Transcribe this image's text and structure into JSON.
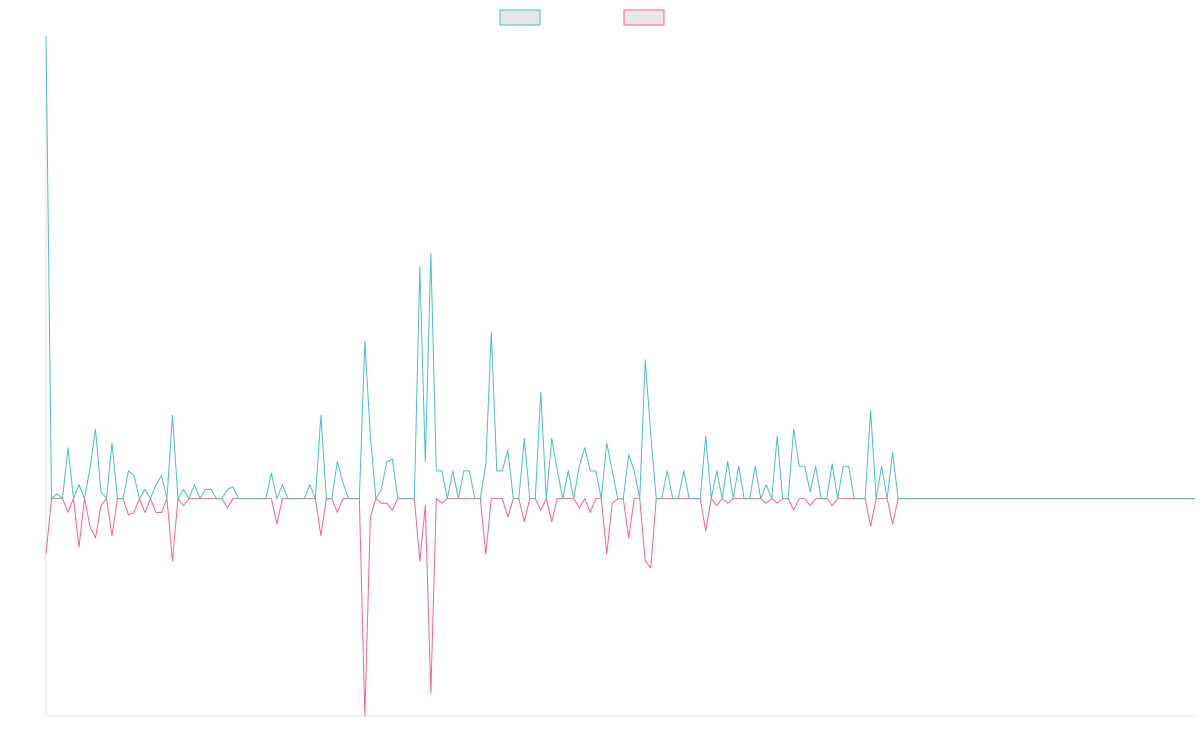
{
  "chart_data": {
    "type": "line",
    "ylim": [
      -47,
      100
    ],
    "series": [
      {
        "color": "#4bc0c0",
        "values": [
          100,
          0,
          1,
          0,
          11,
          0,
          3,
          0,
          6.5,
          15,
          1.5,
          0,
          12,
          0,
          0,
          6,
          5,
          0,
          2,
          0,
          3,
          5,
          0,
          18,
          0,
          2,
          0,
          3,
          0,
          2,
          2,
          0,
          0,
          2,
          2.5,
          0,
          0,
          0,
          0,
          0,
          0,
          5.5,
          0,
          3,
          0,
          0,
          0,
          0,
          3,
          0,
          18,
          0,
          0,
          8,
          3.5,
          0,
          0,
          0,
          34,
          13.5,
          0,
          2,
          8,
          8.5,
          0,
          0,
          0,
          0,
          50,
          8,
          53,
          6,
          6,
          0,
          6,
          0,
          6,
          6,
          0,
          0,
          7.5,
          36,
          6,
          6,
          10.5,
          0,
          0,
          13,
          0,
          0,
          23,
          0,
          13,
          6,
          0,
          6,
          0,
          7,
          11,
          6,
          6,
          0,
          12,
          6,
          0,
          0,
          9.5,
          6,
          0,
          30,
          14,
          0,
          0,
          6,
          0,
          0,
          6,
          0,
          0,
          0,
          13.5,
          0,
          6,
          0,
          8,
          0,
          7,
          0,
          0,
          7,
          0,
          3,
          0,
          13.5,
          0,
          0,
          15,
          7,
          7,
          1.5,
          7,
          0,
          0,
          7.5,
          0,
          7,
          7,
          0,
          0,
          0,
          19,
          0,
          7,
          0,
          10,
          0,
          0,
          0,
          0,
          0,
          0,
          0,
          0,
          0,
          0,
          0,
          0,
          0,
          0,
          0,
          0,
          0,
          0,
          0,
          0,
          0,
          0,
          0,
          0,
          0,
          0,
          0,
          0,
          0,
          0,
          0,
          0,
          0,
          0,
          0,
          0,
          0,
          0,
          0,
          0,
          0,
          0,
          0,
          0,
          0,
          0,
          0,
          0,
          0,
          0,
          0,
          0,
          0,
          0,
          0
        ]
      },
      {
        "color": "#ff6384",
        "values": [
          -12,
          0,
          0,
          0,
          -3,
          0,
          -10.5,
          0,
          -6,
          -8.5,
          -1.5,
          0,
          -8,
          0,
          0,
          -3.5,
          -3,
          0,
          -3,
          0,
          -3,
          -3,
          0,
          -13.5,
          0,
          -1.5,
          0,
          0,
          0,
          0,
          0,
          0,
          0,
          -2,
          0,
          0,
          0,
          0,
          0,
          0,
          0,
          0,
          -5.5,
          0,
          0,
          0,
          0,
          0,
          0,
          0,
          -8,
          0,
          0,
          -3,
          0,
          0,
          0,
          0,
          -47,
          -4,
          0,
          -1,
          -1,
          -2.5,
          0,
          0,
          0,
          0,
          -13.5,
          -1.5,
          -42,
          0,
          -1,
          0,
          0,
          0,
          0,
          0,
          0,
          0,
          -12,
          0,
          0,
          0,
          -4,
          0,
          0,
          -5,
          0,
          0,
          -2.5,
          0,
          -5,
          0,
          0,
          0,
          0,
          -2,
          0,
          -3,
          0,
          0,
          -12,
          -1,
          0,
          0,
          -8.5,
          0,
          0,
          -13.5,
          -15,
          0,
          0,
          0,
          0,
          0,
          0,
          0,
          0,
          0,
          -7,
          0,
          -1.5,
          0,
          -1,
          0,
          0,
          0,
          0,
          0,
          0,
          -1,
          0,
          -1,
          0,
          0,
          -2.5,
          0,
          0,
          -1.5,
          0,
          0,
          0,
          -1.5,
          0,
          0,
          0,
          0,
          0,
          0,
          -6,
          0,
          0,
          0,
          -5.5,
          0,
          0,
          0,
          0,
          0,
          0,
          0,
          0,
          0,
          0,
          0,
          0,
          0,
          0,
          0,
          0,
          0,
          0,
          0,
          0,
          0,
          0,
          0,
          0,
          0,
          0,
          0,
          0,
          0,
          0,
          0,
          0,
          0,
          0,
          0,
          0,
          0,
          0,
          0,
          0,
          0,
          0,
          0,
          0,
          0,
          0,
          0,
          0,
          0,
          0,
          0,
          0,
          0,
          0,
          0
        ]
      }
    ]
  }
}
